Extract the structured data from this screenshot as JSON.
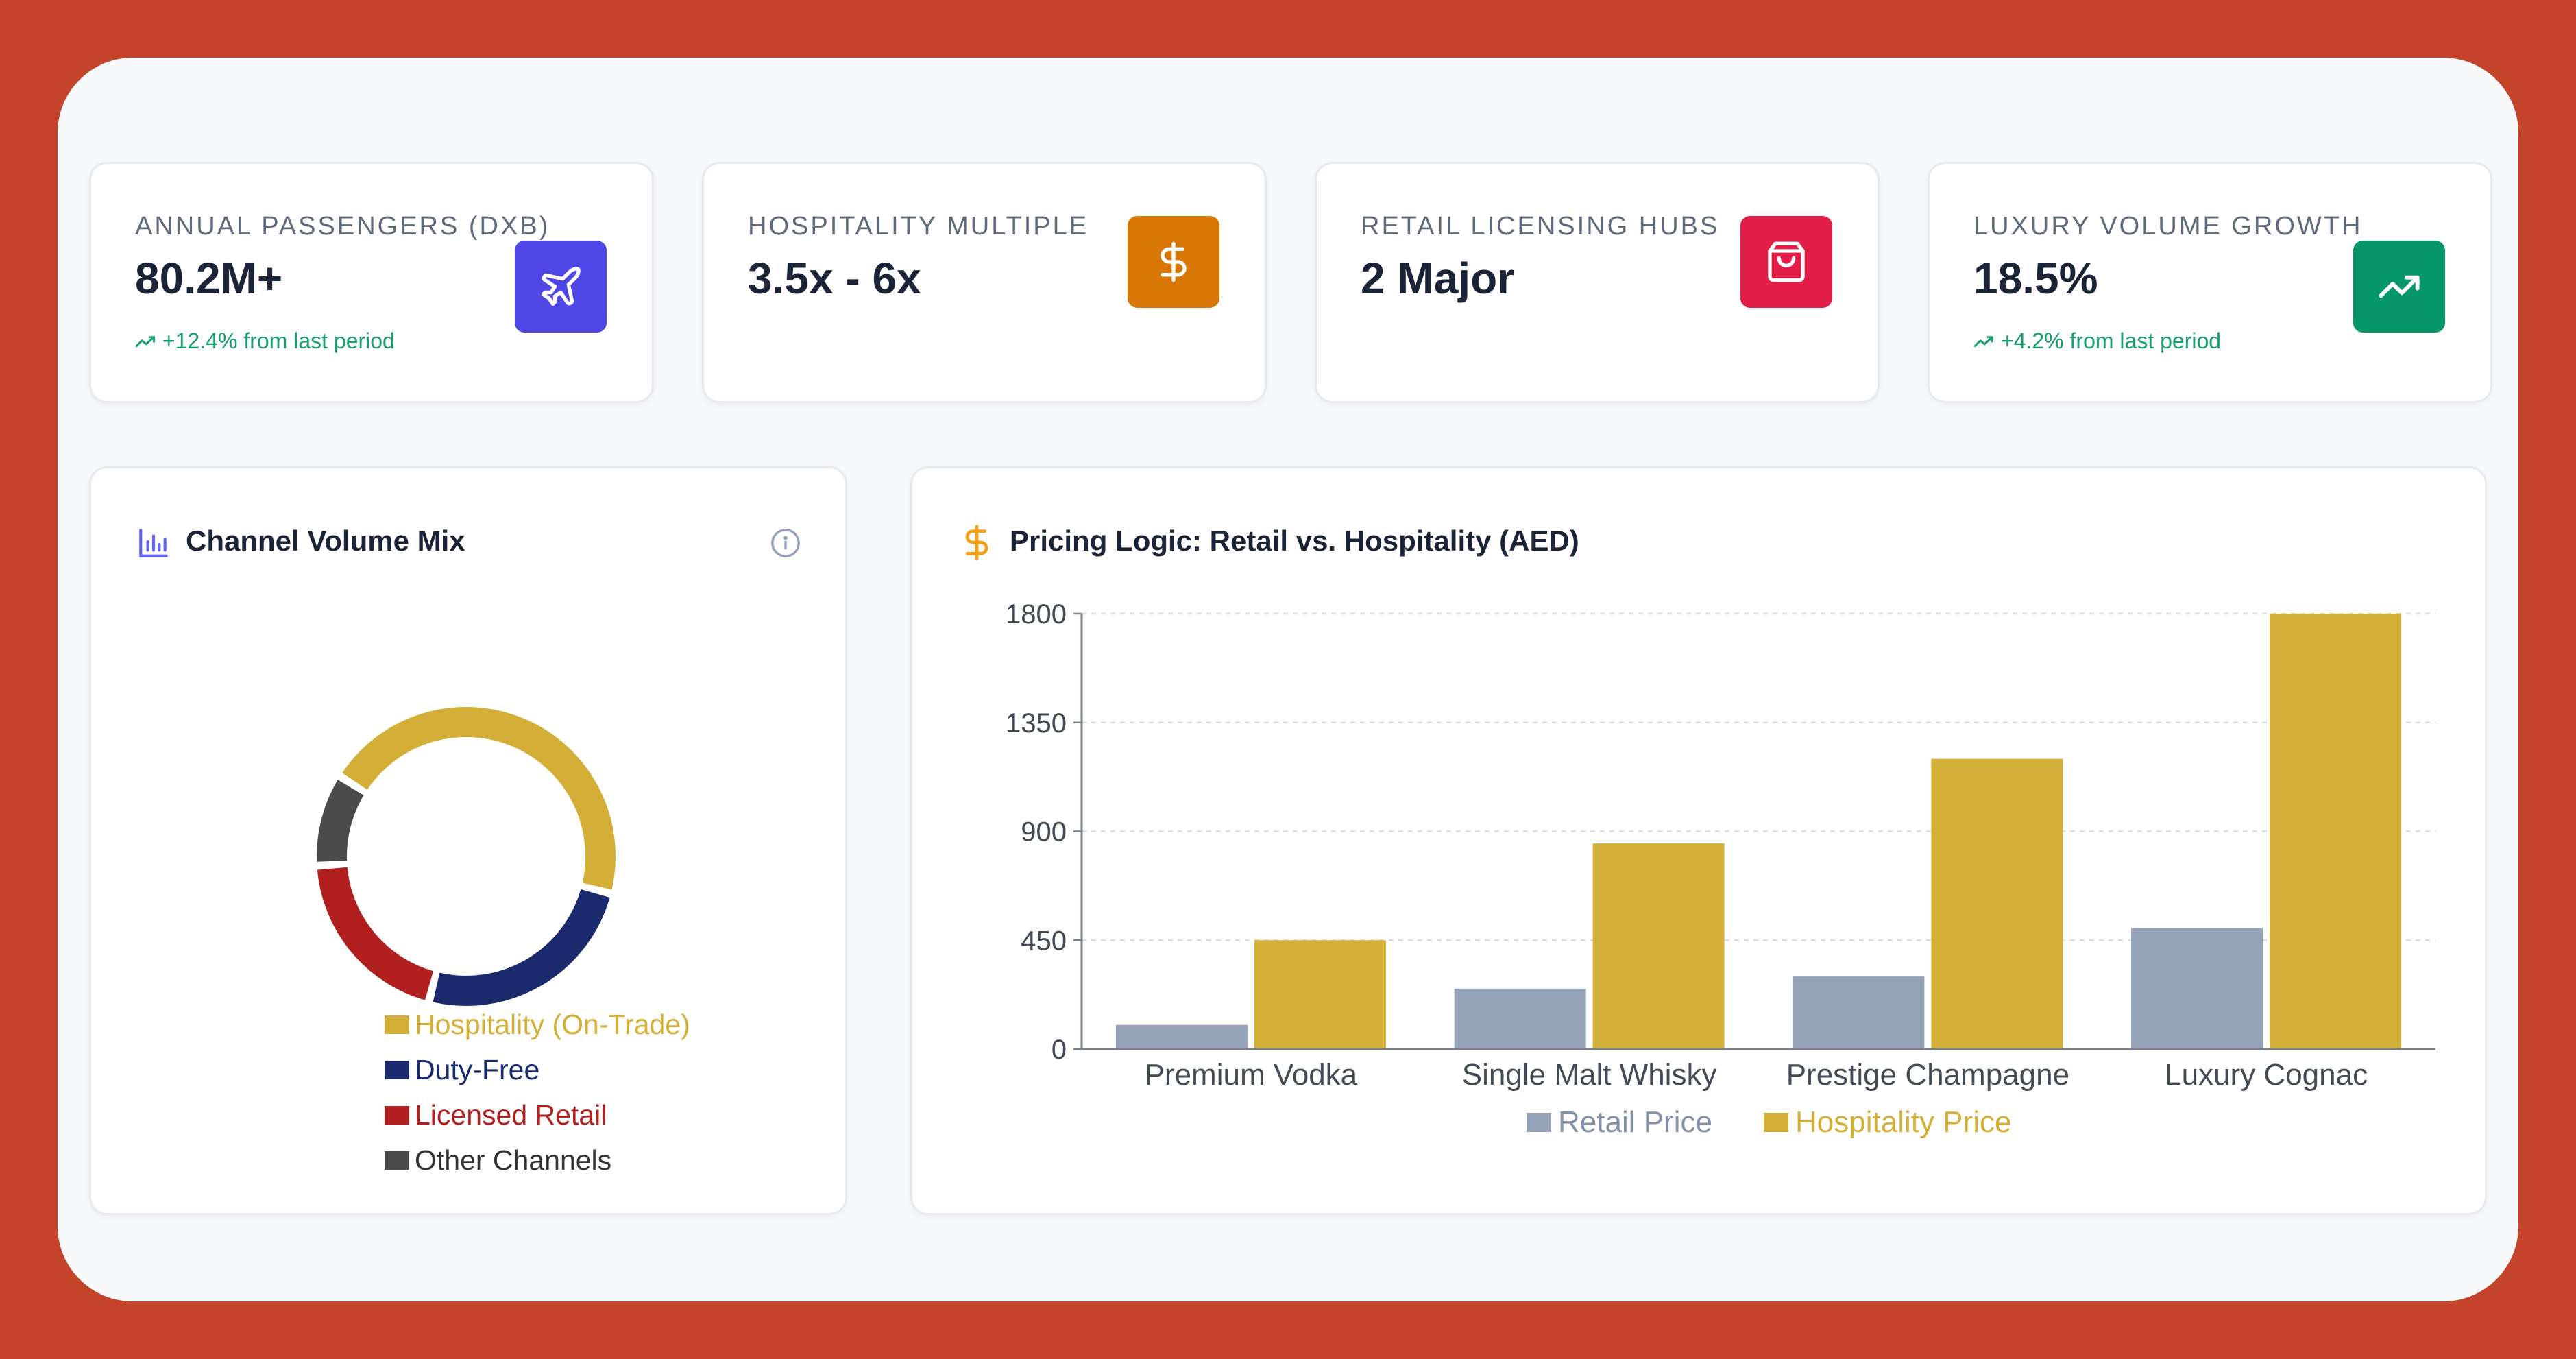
{
  "kpis": [
    {
      "label": "ANNUAL PASSENGERS (DXB)",
      "value": "80.2M+",
      "trend": "+12.4% from last period",
      "icon": "plane-icon",
      "color": "#4f46e5"
    },
    {
      "label": "HOSPITALITY MULTIPLE",
      "value": "3.5x - 6x",
      "trend": "",
      "icon": "dollar-icon",
      "color": "#d97706"
    },
    {
      "label": "RETAIL LICENSING HUBS",
      "value": "2 Major",
      "trend": "",
      "icon": "shopping-bag-icon",
      "color": "#e11d48"
    },
    {
      "label": "LUXURY VOLUME GROWTH",
      "value": "18.5%",
      "trend": "+4.2% from last period",
      "icon": "trending-up-icon",
      "color": "#059669"
    }
  ],
  "channel_panel": {
    "title": "Channel Volume Mix",
    "title_icon": "bar-chart-icon",
    "info_icon": "info-icon"
  },
  "pricing_panel": {
    "title": "Pricing Logic: Retail vs. Hospitality (AED)",
    "title_icon": "dollar-icon"
  },
  "chart_data": [
    {
      "type": "pie",
      "style": "donut",
      "categories": [
        "Hospitality (On-Trade)",
        "Duty-Free",
        "Licensed Retail",
        "Other Channels"
      ],
      "values": [
        45,
        25,
        20,
        10
      ],
      "colors": [
        "#d4af37",
        "#1a2a6c",
        "#b21f1f",
        "#4a4a4a"
      ],
      "legend": "bottom"
    },
    {
      "type": "bar",
      "categories": [
        "Premium Vodka",
        "Single Malt Whisky",
        "Prestige Champagne",
        "Luxury Cognac"
      ],
      "series": [
        {
          "name": "Retail Price",
          "values": [
            100,
            250,
            300,
            500
          ],
          "color": "#94a3b8"
        },
        {
          "name": "Hospitality Price",
          "values": [
            450,
            850,
            1200,
            1800
          ],
          "color": "#d4af37"
        }
      ],
      "yticks": [
        0,
        450,
        900,
        1350,
        1800
      ],
      "ylim": [
        0,
        1800
      ],
      "grid": true,
      "legend": "bottom"
    }
  ]
}
